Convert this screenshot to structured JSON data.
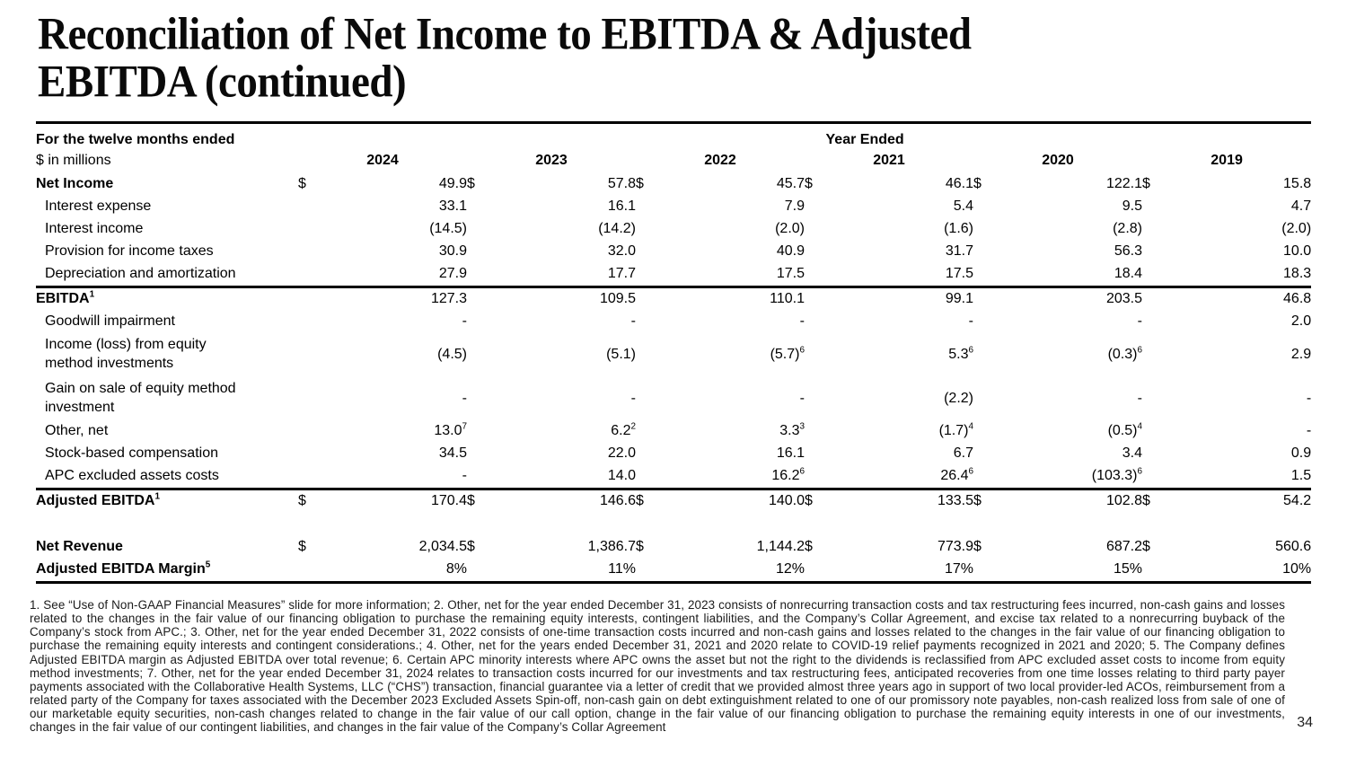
{
  "title": {
    "line1": "Reconciliation of Net Income to EBITDA & Adjusted",
    "line2": "EBITDA (continued)"
  },
  "table": {
    "period_label": "For the twelve months ended",
    "year_ended_label": "Year Ended",
    "units_label": "$ in millions",
    "currency_symbol": "$",
    "years": [
      "2024",
      "2023",
      "2022",
      "2021",
      "2020",
      "2019"
    ],
    "rows": [
      {
        "label": "Net Income",
        "bold": true,
        "dollar": true,
        "values": [
          "49.9",
          "57.8",
          "45.7",
          "46.1",
          "122.1",
          "15.8"
        ]
      },
      {
        "label": "Interest expense",
        "values": [
          "33.1",
          "16.1",
          "7.9",
          "5.4",
          "9.5",
          "4.7"
        ]
      },
      {
        "label": "Interest income",
        "values": [
          "(14.5)",
          "(14.2)",
          "(2.0)",
          "(1.6)",
          "(2.8)",
          "(2.0)"
        ]
      },
      {
        "label": "Provision for income taxes",
        "values": [
          "30.9",
          "32.0",
          "40.9",
          "31.7",
          "56.3",
          "10.0"
        ]
      },
      {
        "label": "Depreciation and amortization",
        "border_below": true,
        "values": [
          "27.9",
          "17.7",
          "17.5",
          "17.5",
          "18.4",
          "18.3"
        ]
      },
      {
        "label": "EBITDA",
        "label_sup": "1",
        "bold": true,
        "values": [
          "127.3",
          "109.5",
          "110.1",
          "99.1",
          "203.5",
          "46.8"
        ]
      },
      {
        "label": "Goodwill impairment",
        "values": [
          "-",
          "-",
          "-",
          "-",
          "-",
          "2.0"
        ]
      },
      {
        "label": "Income (loss) from equity method investments",
        "wrap": true,
        "values": [
          "(4.5)",
          "(5.1)",
          "(5.7)",
          "5.3",
          "(0.3)",
          "2.9"
        ],
        "sups": [
          "",
          "",
          "6",
          "6",
          "6",
          ""
        ]
      },
      {
        "label": "Gain on sale of equity method investment",
        "wrap": true,
        "values": [
          "-",
          "-",
          "-",
          "(2.2)",
          "-",
          "-"
        ]
      },
      {
        "label": "Other, net",
        "values": [
          "13.0",
          "6.2",
          "3.3",
          "(1.7)",
          "(0.5)",
          "-"
        ],
        "sups": [
          "7",
          "2",
          "3",
          "4",
          "4",
          ""
        ]
      },
      {
        "label": "Stock-based compensation",
        "values": [
          "34.5",
          "22.0",
          "16.1",
          "6.7",
          "3.4",
          "0.9"
        ]
      },
      {
        "label": "APC excluded assets costs",
        "border_below": true,
        "values": [
          "-",
          "14.0",
          "16.2",
          "26.4",
          "(103.3)",
          "1.5"
        ],
        "sups": [
          "",
          "",
          "6",
          "6",
          "6",
          ""
        ]
      },
      {
        "label": "Adjusted EBITDA",
        "label_sup": "1",
        "bold": true,
        "dollar": true,
        "values": [
          "170.4",
          "146.6",
          "140.0",
          "133.5",
          "102.8",
          "54.2"
        ]
      },
      {
        "spacer": true
      },
      {
        "label": "Net Revenue",
        "bold": true,
        "dollar": true,
        "values": [
          "2,034.5",
          "1,386.7",
          "1,144.2",
          "773.9",
          "687.2",
          "560.6"
        ]
      },
      {
        "label": "Adjusted EBITDA Margin",
        "label_sup": "5",
        "bold": true,
        "border_below": true,
        "values": [
          "8%",
          "11%",
          "12%",
          "17%",
          "15%",
          "10%"
        ]
      }
    ]
  },
  "footnotes": "1. See “Use of Non-GAAP Financial Measures” slide for more information; 2. Other, net for the year ended December 31, 2023 consists of nonrecurring transaction costs and tax restructuring fees incurred,  non-cash gains and losses related to the changes in the fair value of our financing obligation to purchase the remaining equity interests, contingent liabilities,  and the Company’s Collar Agreement, and excise tax related to a nonrecurring buyback of the Company’s stock from APC.; 3. Other, net for the year ended December 31, 2022 consists of one-time transaction costs incurred and non-cash gains and losses related to the changes in the fair value of our financing obligation to purchase the remaining equity interests and contingent considerations.; 4. Other, net for the years ended December 31, 2021 and 2020 relate to COVID-19 relief payments recognized in 2021 and 2020; 5. The Company defines Adjusted EBITDA margin as Adjusted EBITDA over total revenue; 6. Certain APC minority interests where APC owns the asset but not the right to the dividends is reclassified from APC excluded asset costs to income from equity method investments; 7. Other, net for the year ended December 31, 2024 relates to transaction costs incurred for our investments and tax restructuring fees, anticipated recoveries from one time losses relating to third party payer payments associated with the Collaborative Health Systems, LLC (“CHS”) transaction, financial guarantee via a letter of credit that we provided almost three years ago in support of two local provider-led ACOs, reimbursement from a related party of the Company for taxes associated with the December 2023 Excluded Assets Spin-off, non-cash gain on debt extinguishment related to one of our promissory note payables, non-cash realized loss from sale of one of our marketable equity securities, non-cash changes related to change in the fair value of our call option, change in the fair value of our financing obligation to purchase the remaining equity interests in one of our investments, changes in the fair value of our contingent liabilities, and changes in the fair value of the Company’s Collar Agreement",
  "page_number": "34"
}
